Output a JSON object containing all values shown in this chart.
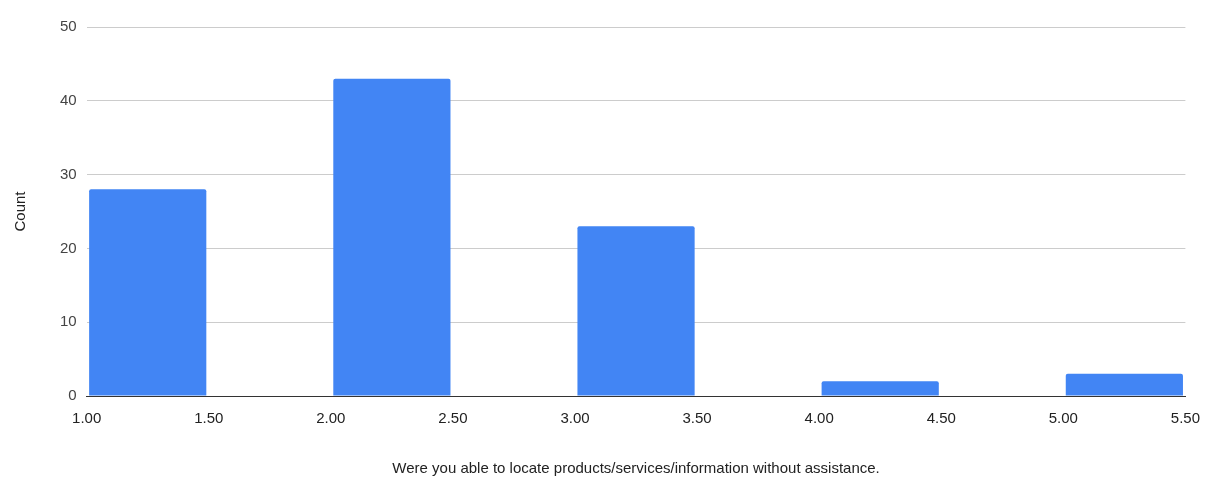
{
  "chart_data": {
    "type": "histogram",
    "xlabel": "Were you able to locate products/services/information without assistance.",
    "ylabel": "Count",
    "bins": [
      1,
      1.5,
      2,
      2.5,
      3,
      3.5,
      4,
      4.5,
      5,
      5.5
    ],
    "values": [
      28,
      0,
      43,
      0,
      23,
      0,
      2,
      0,
      3
    ],
    "color": "#4285f4",
    "xlim": [
      1,
      5.5
    ],
    "xticks": [
      {
        "value": 1,
        "label": "1.00"
      },
      {
        "value": 1.5,
        "label": "1.50"
      },
      {
        "value": 2,
        "label": "2.00"
      },
      {
        "value": 2.5,
        "label": "2.50"
      },
      {
        "value": 3,
        "label": "3.00"
      },
      {
        "value": 3.5,
        "label": "3.50"
      },
      {
        "value": 4,
        "label": "4.00"
      },
      {
        "value": 4.5,
        "label": "4.50"
      },
      {
        "value": 5,
        "label": "5.00"
      },
      {
        "value": 5.5,
        "label": "5.50"
      }
    ],
    "ylim": [
      0,
      50
    ],
    "yticks": [
      0,
      10,
      20,
      30,
      40,
      50
    ],
    "grid": "y"
  }
}
